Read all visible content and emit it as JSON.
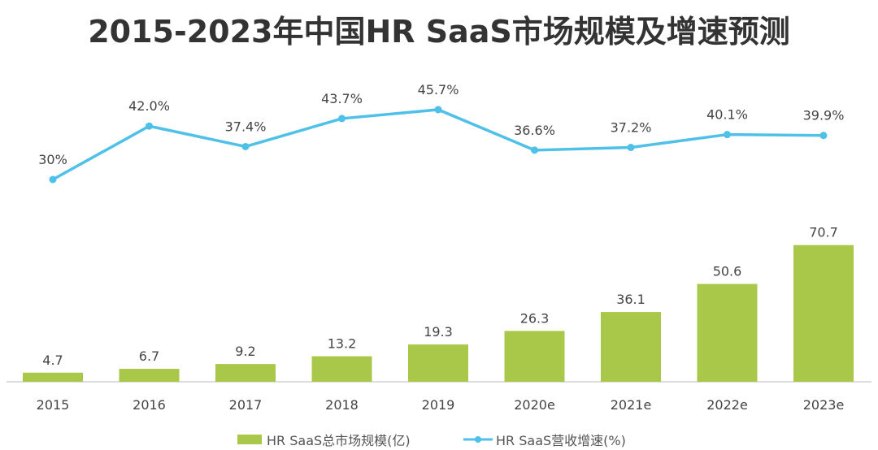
{
  "chart_data": {
    "type": "bar+line",
    "title": "2015-2023年中国HR SaaS市场规模及增速预测",
    "categories": [
      "2015",
      "2016",
      "2017",
      "2018",
      "2019",
      "2020e",
      "2021e",
      "2022e",
      "2023e"
    ],
    "series": [
      {
        "name": "HR SaaS总市场规模(亿)",
        "type": "bar",
        "color": "#a9c84a",
        "values": [
          4.7,
          6.7,
          9.2,
          13.2,
          19.3,
          26.3,
          36.1,
          50.6,
          70.7
        ],
        "labels": [
          "4.7",
          "6.7",
          "9.2",
          "13.2",
          "19.3",
          "26.3",
          "36.1",
          "50.6",
          "70.7"
        ]
      },
      {
        "name": "HR SaaS营收增速(%)",
        "type": "line",
        "color": "#4fc1e9",
        "values": [
          30,
          42.0,
          37.4,
          43.7,
          45.7,
          36.6,
          37.2,
          40.1,
          39.9
        ],
        "labels": [
          "30%",
          "42.0%",
          "37.4%",
          "43.7%",
          "45.7%",
          "36.6%",
          "37.2%",
          "40.1%",
          "39.9%"
        ]
      }
    ],
    "grid": false,
    "legend": "bottom"
  }
}
